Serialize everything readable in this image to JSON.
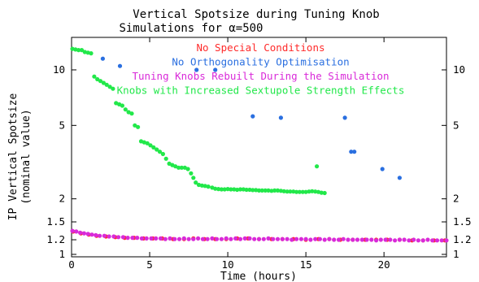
{
  "chart_data": {
    "type": "scatter",
    "title_lines": [
      "Vertical Spotsize during Tuning Knob",
      "Simulations for α=500"
    ],
    "xlabel": "Time (hours)",
    "ylabel_lines": [
      "IP Vertical Spotsize",
      "(nominal value)"
    ],
    "xlim": [
      0,
      24
    ],
    "ylim": [
      0.97,
      15
    ],
    "y_scale": "log",
    "x_ticks": [
      0,
      5,
      10,
      15,
      20
    ],
    "y_ticks": [
      {
        "value": 1,
        "label": "1"
      },
      {
        "value": 1.2,
        "label": "1.2"
      },
      {
        "value": 1.5,
        "label": "1.5"
      },
      {
        "value": 2,
        "label": "2"
      },
      {
        "value": 5,
        "label": "5"
      },
      {
        "value": 10,
        "label": "10"
      }
    ],
    "legend_placement": "inside-top-center",
    "series": [
      {
        "name": "No Special Conditions",
        "color": "#ff2a2a",
        "points": [
          [
            0.1,
            1.33
          ],
          [
            0.6,
            1.3
          ],
          [
            1.1,
            1.28
          ],
          [
            1.6,
            1.26
          ],
          [
            2.2,
            1.25
          ],
          [
            2.8,
            1.24
          ],
          [
            3.4,
            1.23
          ],
          [
            4.0,
            1.23
          ],
          [
            4.6,
            1.22
          ],
          [
            5.2,
            1.22
          ],
          [
            5.8,
            1.22
          ],
          [
            6.5,
            1.21
          ],
          [
            7.2,
            1.21
          ],
          [
            7.8,
            1.22
          ],
          [
            8.5,
            1.21
          ],
          [
            9.2,
            1.21
          ],
          [
            9.9,
            1.21
          ],
          [
            10.6,
            1.22
          ],
          [
            11.3,
            1.22
          ],
          [
            12.0,
            1.21
          ],
          [
            12.8,
            1.21
          ],
          [
            13.5,
            1.21
          ],
          [
            14.2,
            1.21
          ],
          [
            15.0,
            1.2
          ],
          [
            15.8,
            1.21
          ],
          [
            16.5,
            1.21
          ],
          [
            17.2,
            1.2
          ],
          [
            18.0,
            1.2
          ],
          [
            18.8,
            1.2
          ],
          [
            19.5,
            1.2
          ],
          [
            20.2,
            1.2
          ],
          [
            21.0,
            1.2
          ],
          [
            21.8,
            1.19
          ],
          [
            22.5,
            1.19
          ],
          [
            23.2,
            1.19
          ],
          [
            23.9,
            1.19
          ]
        ]
      },
      {
        "name": "No Orthogonality Optimisation",
        "color": "#2a6fe0",
        "points": [
          [
            2.0,
            11.5
          ],
          [
            3.1,
            10.5
          ],
          [
            8.0,
            10.0
          ],
          [
            9.2,
            10.0
          ],
          [
            11.6,
            5.6
          ],
          [
            13.4,
            5.5
          ],
          [
            17.5,
            5.5
          ],
          [
            17.9,
            3.6
          ],
          [
            18.1,
            3.6
          ],
          [
            19.9,
            2.9
          ],
          [
            21.0,
            2.6
          ]
        ]
      },
      {
        "name": "Tuning Knobs Rebuilt During the Simulation",
        "color": "#d92ad9",
        "points": [
          [
            0.05,
            1.34
          ],
          [
            0.3,
            1.33
          ],
          [
            0.55,
            1.31
          ],
          [
            0.8,
            1.3
          ],
          [
            1.05,
            1.29
          ],
          [
            1.3,
            1.28
          ],
          [
            1.55,
            1.27
          ],
          [
            1.8,
            1.26
          ],
          [
            2.1,
            1.26
          ],
          [
            2.4,
            1.25
          ],
          [
            2.7,
            1.25
          ],
          [
            3.0,
            1.24
          ],
          [
            3.3,
            1.24
          ],
          [
            3.6,
            1.23
          ],
          [
            3.9,
            1.23
          ],
          [
            4.2,
            1.23
          ],
          [
            4.5,
            1.22
          ],
          [
            4.8,
            1.22
          ],
          [
            5.1,
            1.22
          ],
          [
            5.4,
            1.22
          ],
          [
            5.7,
            1.22
          ],
          [
            6.0,
            1.21
          ],
          [
            6.3,
            1.22
          ],
          [
            6.6,
            1.21
          ],
          [
            6.9,
            1.21
          ],
          [
            7.2,
            1.22
          ],
          [
            7.5,
            1.21
          ],
          [
            7.8,
            1.21
          ],
          [
            8.1,
            1.22
          ],
          [
            8.4,
            1.21
          ],
          [
            8.7,
            1.21
          ],
          [
            9.0,
            1.22
          ],
          [
            9.3,
            1.21
          ],
          [
            9.6,
            1.21
          ],
          [
            9.9,
            1.22
          ],
          [
            10.2,
            1.21
          ],
          [
            10.5,
            1.22
          ],
          [
            10.8,
            1.21
          ],
          [
            11.1,
            1.22
          ],
          [
            11.4,
            1.22
          ],
          [
            11.7,
            1.21
          ],
          [
            12.0,
            1.21
          ],
          [
            12.3,
            1.21
          ],
          [
            12.6,
            1.22
          ],
          [
            12.9,
            1.21
          ],
          [
            13.2,
            1.21
          ],
          [
            13.5,
            1.21
          ],
          [
            13.8,
            1.21
          ],
          [
            14.1,
            1.2
          ],
          [
            14.4,
            1.21
          ],
          [
            14.7,
            1.21
          ],
          [
            15.0,
            1.21
          ],
          [
            15.3,
            1.2
          ],
          [
            15.6,
            1.21
          ],
          [
            15.9,
            1.21
          ],
          [
            16.2,
            1.2
          ],
          [
            16.5,
            1.21
          ],
          [
            16.8,
            1.2
          ],
          [
            17.1,
            1.2
          ],
          [
            17.4,
            1.21
          ],
          [
            17.7,
            1.2
          ],
          [
            18.0,
            1.2
          ],
          [
            18.3,
            1.2
          ],
          [
            18.6,
            1.2
          ],
          [
            18.9,
            1.2
          ],
          [
            19.2,
            1.2
          ],
          [
            19.5,
            1.19
          ],
          [
            19.8,
            1.2
          ],
          [
            20.1,
            1.2
          ],
          [
            20.4,
            1.2
          ],
          [
            20.7,
            1.19
          ],
          [
            21.0,
            1.2
          ],
          [
            21.3,
            1.2
          ],
          [
            21.6,
            1.19
          ],
          [
            21.9,
            1.2
          ],
          [
            22.2,
            1.19
          ],
          [
            22.5,
            1.19
          ],
          [
            22.8,
            1.2
          ],
          [
            23.1,
            1.19
          ],
          [
            23.4,
            1.19
          ],
          [
            23.7,
            1.19
          ],
          [
            24.0,
            1.19
          ]
        ]
      },
      {
        "name": "Knobs with Increased Sextupole Strength Effects",
        "color": "#22e84a",
        "points": [
          [
            0.05,
            13.0
          ],
          [
            0.25,
            12.9
          ],
          [
            0.45,
            12.8
          ],
          [
            0.65,
            12.8
          ],
          [
            0.85,
            12.5
          ],
          [
            1.05,
            12.4
          ],
          [
            1.25,
            12.3
          ],
          [
            1.45,
            9.2
          ],
          [
            1.65,
            8.9
          ],
          [
            1.85,
            8.7
          ],
          [
            2.05,
            8.5
          ],
          [
            2.25,
            8.3
          ],
          [
            2.45,
            8.1
          ],
          [
            2.65,
            7.9
          ],
          [
            2.85,
            6.6
          ],
          [
            3.05,
            6.5
          ],
          [
            3.25,
            6.4
          ],
          [
            3.45,
            6.1
          ],
          [
            3.65,
            5.9
          ],
          [
            3.85,
            5.8
          ],
          [
            4.05,
            5.0
          ],
          [
            4.25,
            4.9
          ],
          [
            4.45,
            4.1
          ],
          [
            4.65,
            4.05
          ],
          [
            4.85,
            4.0
          ],
          [
            5.05,
            3.9
          ],
          [
            5.25,
            3.8
          ],
          [
            5.45,
            3.7
          ],
          [
            5.65,
            3.6
          ],
          [
            5.85,
            3.5
          ],
          [
            6.05,
            3.3
          ],
          [
            6.25,
            3.1
          ],
          [
            6.45,
            3.05
          ],
          [
            6.65,
            3.0
          ],
          [
            6.85,
            2.95
          ],
          [
            7.05,
            2.95
          ],
          [
            7.25,
            2.95
          ],
          [
            7.45,
            2.9
          ],
          [
            7.65,
            2.75
          ],
          [
            7.8,
            2.6
          ],
          [
            7.95,
            2.45
          ],
          [
            8.15,
            2.38
          ],
          [
            8.35,
            2.36
          ],
          [
            8.55,
            2.35
          ],
          [
            8.75,
            2.33
          ],
          [
            9.0,
            2.3
          ],
          [
            9.2,
            2.27
          ],
          [
            9.4,
            2.26
          ],
          [
            9.6,
            2.25
          ],
          [
            9.8,
            2.25
          ],
          [
            10.0,
            2.26
          ],
          [
            10.2,
            2.25
          ],
          [
            10.4,
            2.25
          ],
          [
            10.6,
            2.24
          ],
          [
            10.8,
            2.25
          ],
          [
            11.0,
            2.25
          ],
          [
            11.2,
            2.24
          ],
          [
            11.4,
            2.24
          ],
          [
            11.6,
            2.23
          ],
          [
            11.8,
            2.23
          ],
          [
            12.0,
            2.22
          ],
          [
            12.2,
            2.22
          ],
          [
            12.4,
            2.22
          ],
          [
            12.6,
            2.22
          ],
          [
            12.8,
            2.21
          ],
          [
            13.0,
            2.22
          ],
          [
            13.2,
            2.22
          ],
          [
            13.4,
            2.21
          ],
          [
            13.6,
            2.2
          ],
          [
            13.8,
            2.19
          ],
          [
            14.0,
            2.19
          ],
          [
            14.2,
            2.19
          ],
          [
            14.4,
            2.18
          ],
          [
            14.6,
            2.18
          ],
          [
            14.8,
            2.18
          ],
          [
            15.0,
            2.18
          ],
          [
            15.2,
            2.19
          ],
          [
            15.4,
            2.2
          ],
          [
            15.6,
            2.19
          ],
          [
            15.8,
            2.18
          ],
          [
            15.7,
            3.0
          ],
          [
            16.0,
            2.16
          ],
          [
            16.2,
            2.15
          ]
        ]
      }
    ]
  }
}
